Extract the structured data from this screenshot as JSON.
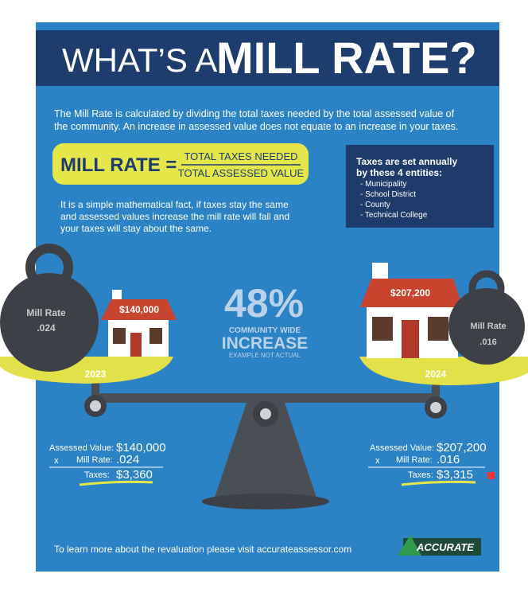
{
  "header": {
    "title_light": "WHAT’S A",
    "title_bold": "MILL RATE?"
  },
  "intro": {
    "lines": [
      "The Mill Rate is calculated by dividing the total taxes needed by the total assessed value of",
      "the community. An increase in assessed value does not equate to an increase in your taxes."
    ]
  },
  "formula": {
    "label": "MILL RATE =",
    "numerator": "TOTAL TAXES NEEDED",
    "denominator": "TOTAL ASSESSED VALUE"
  },
  "fact": {
    "lines": [
      "It is a simple mathematical fact, if taxes stay the same",
      "and assessed values increase the mill rate will fall and",
      "your taxes will stay about the same."
    ]
  },
  "entities": {
    "title_lines": [
      "Taxes are set annually",
      "by these 4 entities:"
    ],
    "items": [
      "- Municipality",
      "- School District",
      "- County",
      "- Technical College"
    ]
  },
  "left": {
    "weight_label": "Mill Rate",
    "weight_value": ".024",
    "house_price": "$140,000",
    "year": "2023"
  },
  "right": {
    "weight_label": "Mill Rate",
    "weight_value": ".016",
    "house_price": "$207,200",
    "year": "2024"
  },
  "center": {
    "percent": "48%",
    "line1": "COMMUNITY WIDE",
    "line2": "INCREASE",
    "note": "EXAMPLE NOT ACTUAL"
  },
  "calc_left": {
    "assessed_label": "Assessed Value:",
    "assessed_value": "$140,000",
    "times": "x",
    "rate_label": "Mill Rate:",
    "rate_value": ".024",
    "taxes_label": "Taxes:",
    "taxes_value": "$3,360"
  },
  "calc_right": {
    "assessed_label": "Assessed Value:",
    "assessed_value": "$207,200",
    "times": "x",
    "rate_label": "Mill Rate:",
    "rate_value": ".016",
    "taxes_label": "Taxes:",
    "taxes_value": "$3,315"
  },
  "footer": {
    "text": "To learn more about the revaluation please visit accurateassessor.com",
    "logo": "ACCURATE"
  }
}
